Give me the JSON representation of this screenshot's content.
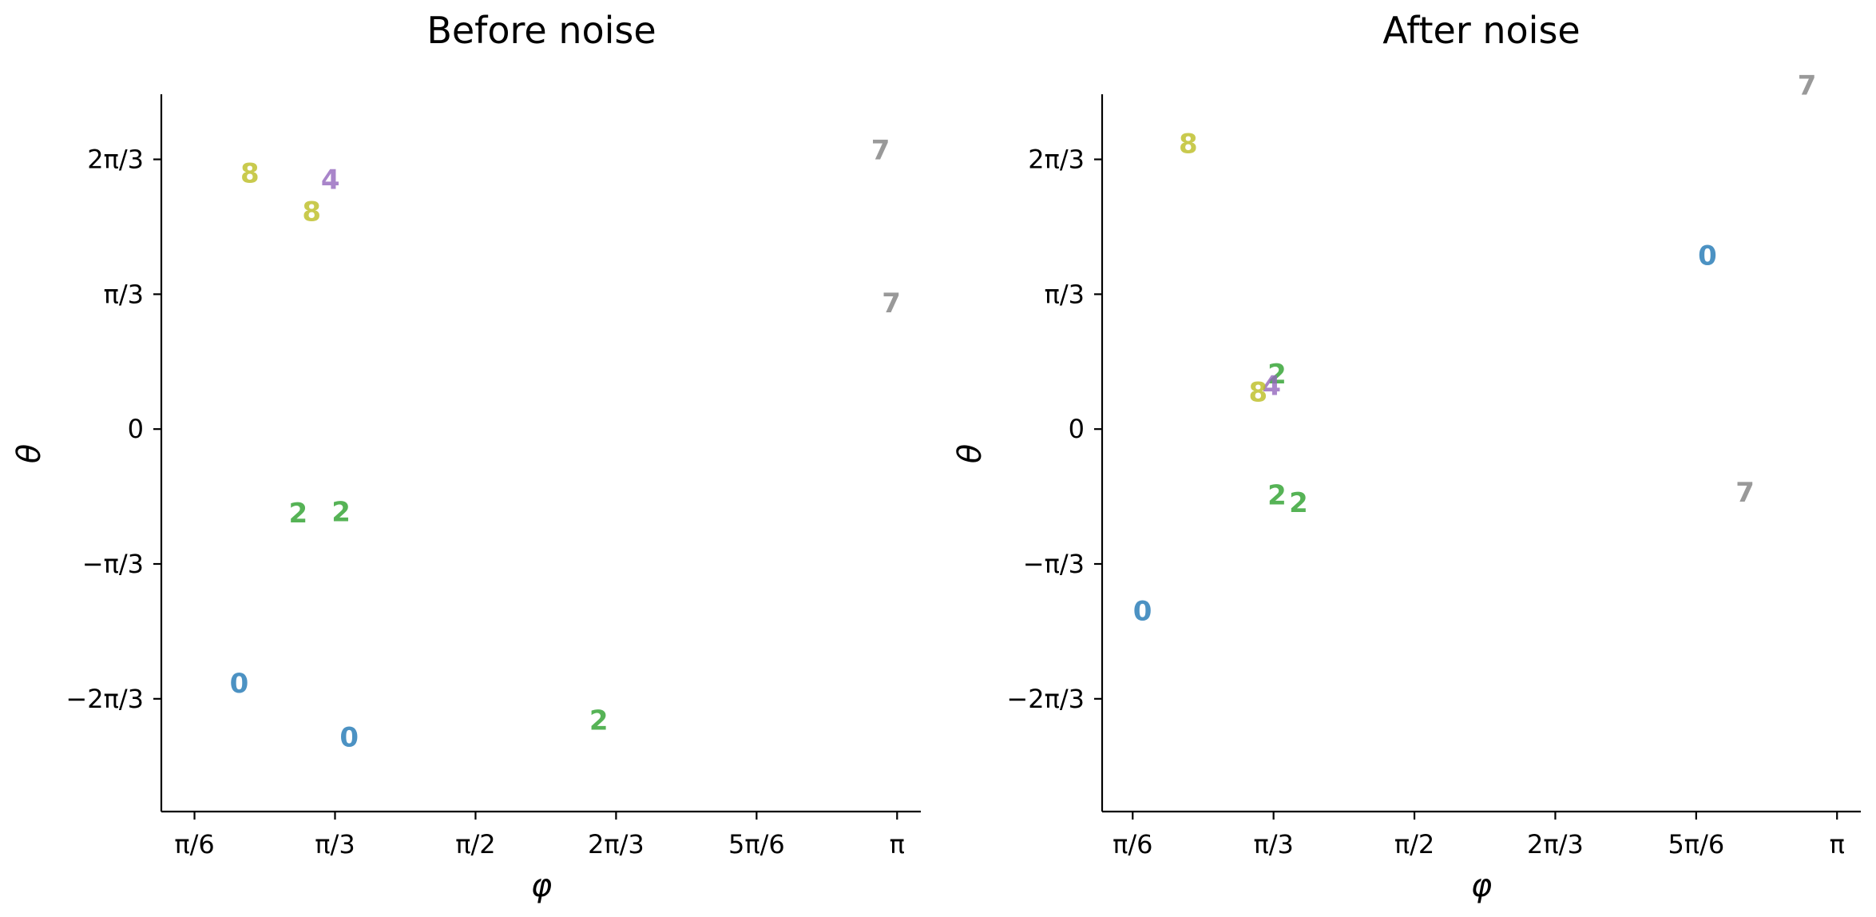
{
  "chart_data": [
    {
      "type": "scatter",
      "title": "Before noise",
      "xlabel": "φ",
      "ylabel": "θ",
      "xlim": [
        0.4,
        3.23
      ],
      "ylim": [
        -2.97,
        2.6
      ],
      "xticks": [
        {
          "value": 0.5236,
          "label": "π/6"
        },
        {
          "value": 1.0472,
          "label": "π/3"
        },
        {
          "value": 1.5708,
          "label": "π/2"
        },
        {
          "value": 2.0944,
          "label": "2π/3"
        },
        {
          "value": 2.618,
          "label": "5π/6"
        },
        {
          "value": 3.1416,
          "label": "π"
        }
      ],
      "yticks": [
        {
          "value": -2.0944,
          "label": "−2π/3"
        },
        {
          "value": -1.0472,
          "label": "−π/3"
        },
        {
          "value": 0,
          "label": "0"
        },
        {
          "value": 1.0472,
          "label": "π/3"
        },
        {
          "value": 2.0944,
          "label": "2π/3"
        }
      ],
      "points": [
        {
          "label": "8",
          "x": 0.73,
          "y": 1.99,
          "color": "#bcbd22"
        },
        {
          "label": "4",
          "x": 1.03,
          "y": 1.94,
          "color": "#9467bd"
        },
        {
          "label": "8",
          "x": 0.96,
          "y": 1.69,
          "color": "#bcbd22"
        },
        {
          "label": "7",
          "x": 3.08,
          "y": 2.17,
          "color": "#7f7f7f"
        },
        {
          "label": "7",
          "x": 3.12,
          "y": 0.98,
          "color": "#7f7f7f"
        },
        {
          "label": "2",
          "x": 0.91,
          "y": -0.65,
          "color": "#2ca02c"
        },
        {
          "label": "2",
          "x": 1.07,
          "y": -0.64,
          "color": "#2ca02c"
        },
        {
          "label": "0",
          "x": 0.69,
          "y": -1.97,
          "color": "#1f77b4"
        },
        {
          "label": "0",
          "x": 1.1,
          "y": -2.39,
          "color": "#1f77b4"
        },
        {
          "label": "2",
          "x": 2.03,
          "y": -2.26,
          "color": "#2ca02c"
        }
      ]
    },
    {
      "type": "scatter",
      "title": "After noise",
      "xlabel": "φ",
      "ylabel": "θ",
      "xlim": [
        0.41,
        3.23
      ],
      "ylim": [
        -2.97,
        2.6
      ],
      "xticks": [
        {
          "value": 0.5236,
          "label": "π/6"
        },
        {
          "value": 1.0472,
          "label": "π/3"
        },
        {
          "value": 1.5708,
          "label": "π/2"
        },
        {
          "value": 2.0944,
          "label": "2π/3"
        },
        {
          "value": 2.618,
          "label": "5π/6"
        },
        {
          "value": 3.1416,
          "label": "π"
        }
      ],
      "yticks": [
        {
          "value": -2.0944,
          "label": "−2π/3"
        },
        {
          "value": -1.0472,
          "label": "−π/3"
        },
        {
          "value": 0,
          "label": "0"
        },
        {
          "value": 1.0472,
          "label": "π/3"
        },
        {
          "value": 2.0944,
          "label": "2π/3"
        }
      ],
      "points": [
        {
          "label": "7",
          "x": 3.03,
          "y": 2.67,
          "color": "#7f7f7f"
        },
        {
          "label": "8",
          "x": 0.73,
          "y": 2.22,
          "color": "#bcbd22"
        },
        {
          "label": "0",
          "x": 2.66,
          "y": 1.35,
          "color": "#1f77b4"
        },
        {
          "label": "2",
          "x": 1.06,
          "y": 0.43,
          "color": "#2ca02c"
        },
        {
          "label": "4",
          "x": 1.04,
          "y": 0.34,
          "color": "#9467bd"
        },
        {
          "label": "8",
          "x": 0.99,
          "y": 0.29,
          "color": "#bcbd22"
        },
        {
          "label": "2",
          "x": 1.06,
          "y": -0.51,
          "color": "#2ca02c"
        },
        {
          "label": "2",
          "x": 1.14,
          "y": -0.57,
          "color": "#2ca02c"
        },
        {
          "label": "7",
          "x": 2.8,
          "y": -0.49,
          "color": "#7f7f7f"
        },
        {
          "label": "0",
          "x": 0.56,
          "y": -1.41,
          "color": "#1f77b4"
        }
      ]
    }
  ]
}
